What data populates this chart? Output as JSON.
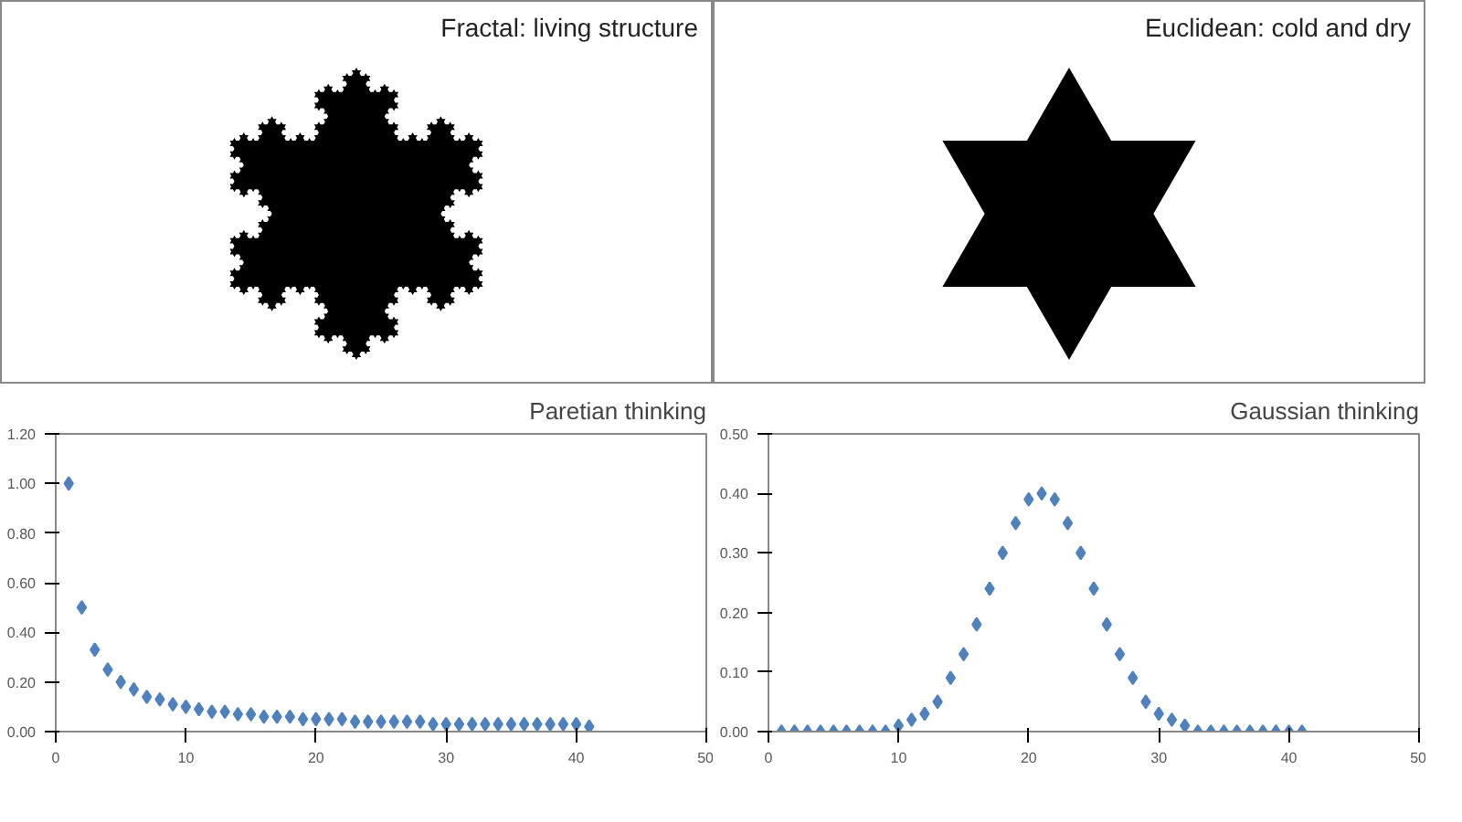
{
  "chart_data": [
    {
      "type": "other",
      "title": "Fractal: living structure"
    },
    {
      "type": "other",
      "title": "Euclidean: cold and dry"
    },
    {
      "type": "scatter",
      "title": "Paretian thinking",
      "marker": "diamond",
      "grid": false,
      "x": [
        1,
        2,
        3,
        4,
        5,
        6,
        7,
        8,
        9,
        10,
        11,
        12,
        13,
        14,
        15,
        16,
        17,
        18,
        19,
        20,
        21,
        22,
        23,
        24,
        25,
        26,
        27,
        28,
        29,
        30,
        31,
        32,
        33,
        34,
        35,
        36,
        37,
        38,
        39,
        40,
        41
      ],
      "series": [
        {
          "color": "#4f81bd",
          "values": [
            1.0,
            0.5,
            0.33,
            0.25,
            0.2,
            0.17,
            0.14,
            0.13,
            0.11,
            0.1,
            0.09,
            0.08,
            0.08,
            0.07,
            0.07,
            0.06,
            0.06,
            0.06,
            0.05,
            0.05,
            0.05,
            0.05,
            0.04,
            0.04,
            0.04,
            0.04,
            0.04,
            0.04,
            0.03,
            0.03,
            0.03,
            0.03,
            0.03,
            0.03,
            0.03,
            0.03,
            0.03,
            0.03,
            0.03,
            0.03,
            0.02
          ]
        }
      ],
      "xlim": [
        0,
        50
      ],
      "xticks": [
        0,
        10,
        20,
        30,
        40,
        50
      ],
      "ylim": [
        0,
        1.2
      ],
      "yticks": [
        {
          "value": 0,
          "label": "0.00"
        },
        {
          "value": 0.2,
          "label": "0.20"
        },
        {
          "value": 0.4,
          "label": "0.40"
        },
        {
          "value": 0.6,
          "label": "0.60"
        },
        {
          "value": 0.8,
          "label": "0.80"
        },
        {
          "value": 1.0,
          "label": "1.00"
        },
        {
          "value": 1.2,
          "label": "1.20"
        }
      ]
    },
    {
      "type": "scatter",
      "title": "Gaussian thinking",
      "marker": "diamond",
      "grid": false,
      "x": [
        1,
        2,
        3,
        4,
        5,
        6,
        7,
        8,
        9,
        10,
        11,
        12,
        13,
        14,
        15,
        16,
        17,
        18,
        19,
        20,
        21,
        22,
        23,
        24,
        25,
        26,
        27,
        28,
        29,
        30,
        31,
        32,
        33,
        34,
        35,
        36,
        37,
        38,
        39,
        40,
        41
      ],
      "series": [
        {
          "color": "#4f81bd",
          "values": [
            0,
            0,
            0,
            0,
            0,
            0,
            0,
            0,
            0.0,
            0.01,
            0.02,
            0.03,
            0.05,
            0.09,
            0.13,
            0.18,
            0.24,
            0.3,
            0.35,
            0.39,
            0.4,
            0.39,
            0.35,
            0.3,
            0.24,
            0.18,
            0.13,
            0.09,
            0.05,
            0.03,
            0.02,
            0.01,
            0.0,
            0,
            0,
            0,
            0,
            0,
            0,
            0,
            0
          ]
        }
      ],
      "xlim": [
        0,
        50
      ],
      "xticks": [
        0,
        10,
        20,
        30,
        40,
        50
      ],
      "ylim": [
        0,
        0.5
      ],
      "yticks": [
        {
          "value": 0,
          "label": "0.00"
        },
        {
          "value": 0.1,
          "label": "0.10"
        },
        {
          "value": 0.2,
          "label": "0.20"
        },
        {
          "value": 0.3,
          "label": "0.30"
        },
        {
          "value": 0.4,
          "label": "0.40"
        },
        {
          "value": 0.5,
          "label": "0.50"
        }
      ]
    }
  ]
}
